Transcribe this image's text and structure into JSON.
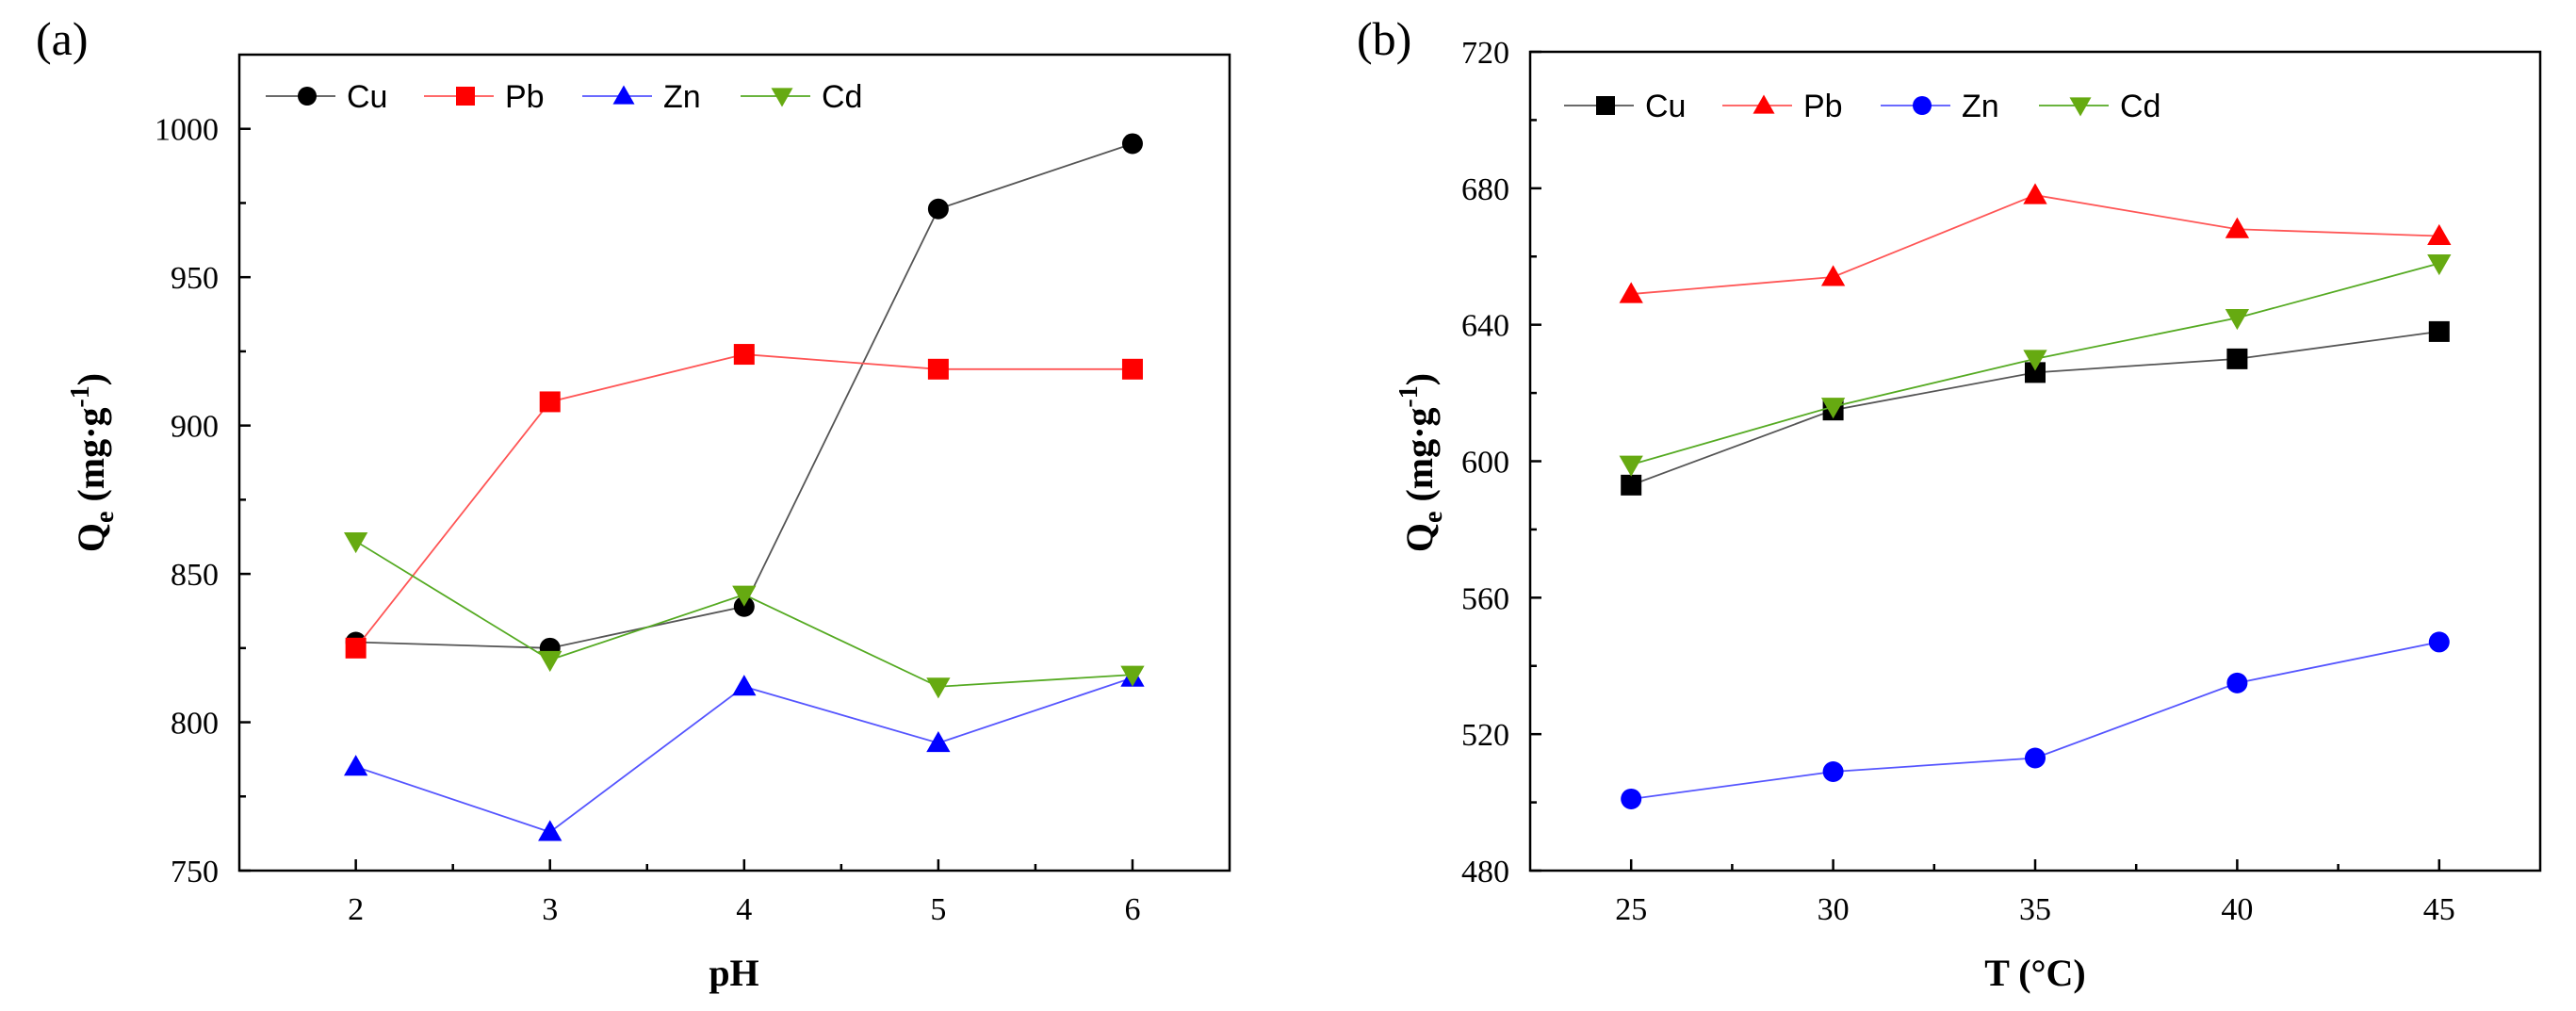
{
  "chart_data": [
    {
      "panel_label": "(a)",
      "type": "line",
      "xlabel": "pH",
      "ylabel": "Qe (mg·g-1)",
      "ylabel_parts": {
        "main": "Q",
        "sub": "e",
        "unit_open": " (mg·g",
        "sup": "-1",
        "unit_close": ")"
      },
      "x": [
        2,
        3,
        4,
        5,
        6
      ],
      "xticks": [
        "2",
        "3",
        "4",
        "5",
        "6"
      ],
      "xlim": [
        1.4,
        6.5
      ],
      "ylim": [
        750,
        1025
      ],
      "yticks": [
        750,
        800,
        850,
        900,
        950,
        1000
      ],
      "legend_position": "top-left",
      "series": [
        {
          "name": "Cu",
          "marker": "circle",
          "line_color": "#555555",
          "marker_color": "#000000",
          "values": [
            827,
            825,
            839,
            973,
            995
          ]
        },
        {
          "name": "Pb",
          "marker": "square",
          "line_color": "#ff5555",
          "marker_color": "#ff0000",
          "values": [
            825,
            908,
            924,
            919,
            919
          ]
        },
        {
          "name": "Zn",
          "marker": "triangle-up",
          "line_color": "#5555ff",
          "marker_color": "#0000ff",
          "values": [
            785,
            763,
            812,
            793,
            815
          ]
        },
        {
          "name": "Cd",
          "marker": "triangle-down",
          "line_color": "#55aa22",
          "marker_color": "#66aa11",
          "values": [
            861,
            821,
            843,
            812,
            816
          ]
        }
      ]
    },
    {
      "panel_label": "(b)",
      "type": "line",
      "xlabel": "T (°C)",
      "ylabel": "Qe (mg·g-1)",
      "ylabel_parts": {
        "main": "Q",
        "sub": "e",
        "unit_open": " (mg·g",
        "sup": "-1",
        "unit_close": ")"
      },
      "x": [
        25,
        30,
        35,
        40,
        45
      ],
      "xticks": [
        "25",
        "30",
        "35",
        "40",
        "45"
      ],
      "xlim": [
        22.5,
        47.5
      ],
      "ylim": [
        480,
        720
      ],
      "yticks": [
        480,
        520,
        560,
        600,
        640,
        680,
        720
      ],
      "legend_position": "top-left",
      "series": [
        {
          "name": "Cu",
          "marker": "square",
          "line_color": "#555555",
          "marker_color": "#000000",
          "values": [
            593,
            615,
            626,
            630,
            638
          ]
        },
        {
          "name": "Pb",
          "marker": "triangle-up",
          "line_color": "#ff5555",
          "marker_color": "#ff0000",
          "values": [
            649,
            654,
            678,
            668,
            666
          ]
        },
        {
          "name": "Zn",
          "marker": "circle",
          "line_color": "#5555ff",
          "marker_color": "#0000ff",
          "values": [
            501,
            509,
            513,
            535,
            547
          ]
        },
        {
          "name": "Cd",
          "marker": "triangle-down",
          "line_color": "#55aa22",
          "marker_color": "#66aa11",
          "values": [
            599,
            616,
            630,
            642,
            658
          ]
        }
      ]
    }
  ]
}
